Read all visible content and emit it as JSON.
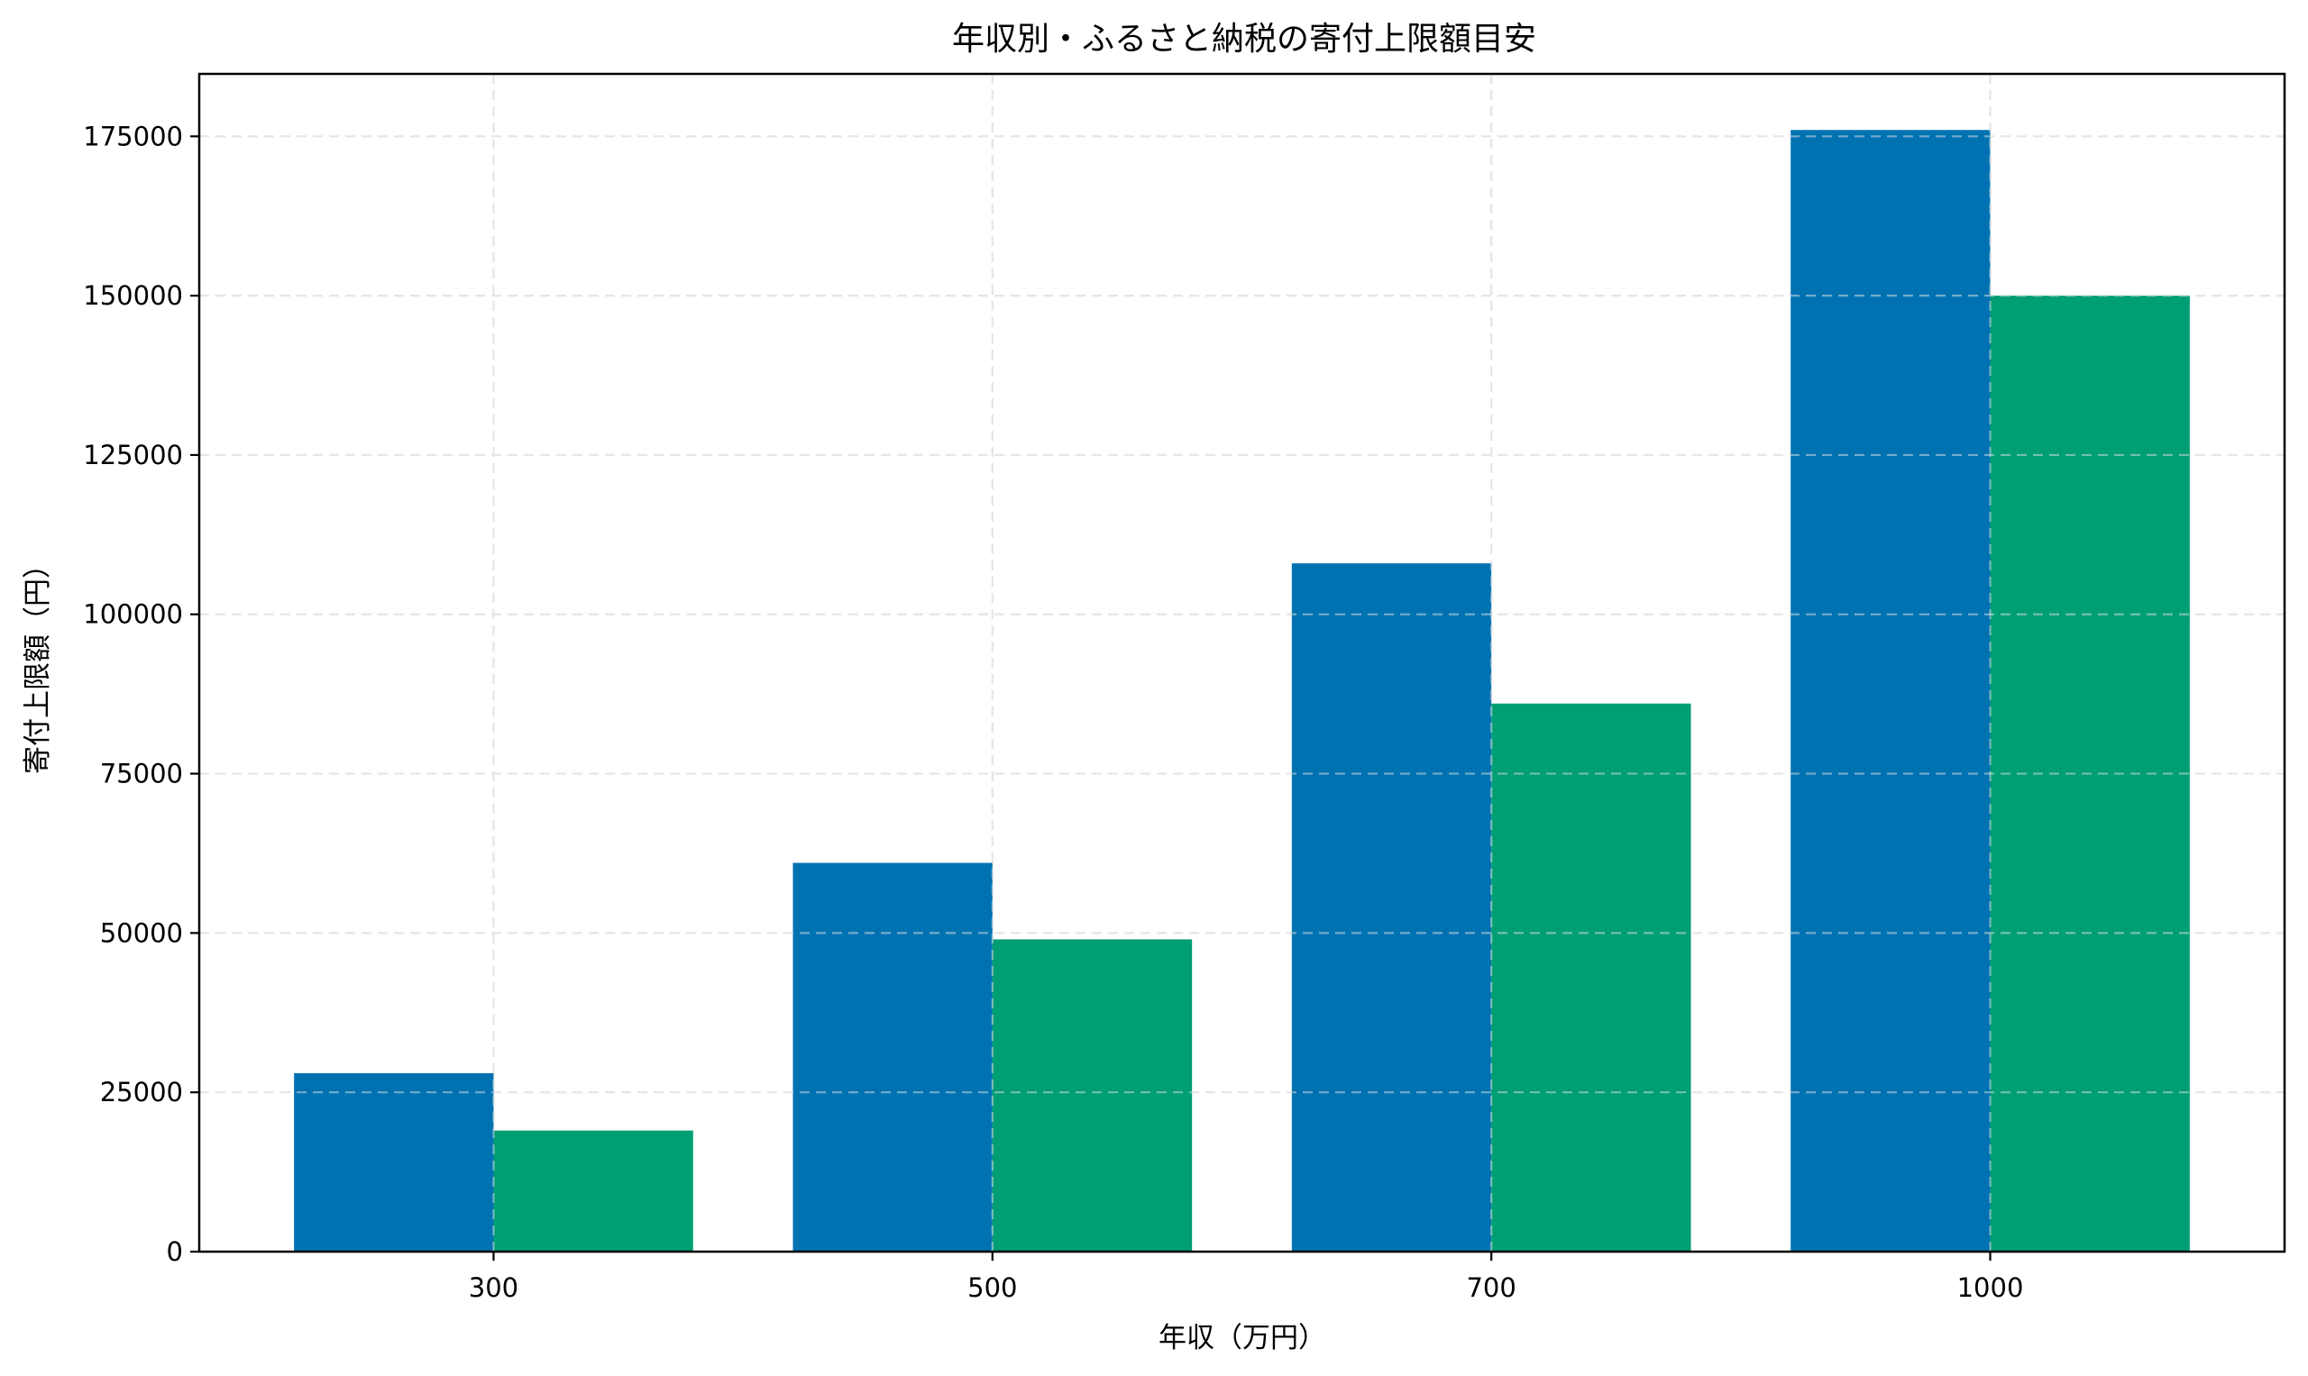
{
  "chart_data": {
    "type": "bar",
    "title": "年収別・ふるさと納税の寄付上限額目安",
    "xlabel": "年収（万円）",
    "ylabel": "寄付上限額（円）",
    "categories": [
      "300",
      "500",
      "700",
      "1000"
    ],
    "series": [
      {
        "name": "series-1",
        "color": "#0072B2",
        "values": [
          28000,
          61000,
          108000,
          176000
        ]
      },
      {
        "name": "series-2",
        "color": "#009E73",
        "values": [
          19000,
          49000,
          86000,
          150000
        ]
      }
    ],
    "yticks": [
      0,
      25000,
      50000,
      75000,
      100000,
      125000,
      150000,
      175000
    ],
    "ytick_labels": [
      "0",
      "25000",
      "50000",
      "75000",
      "100000",
      "125000",
      "150000",
      "175000"
    ],
    "ylim": [
      0,
      184800
    ],
    "xlim": [
      -0.59,
      3.59
    ],
    "bar_width": 0.4,
    "grid": {
      "on": true,
      "style": "dashed",
      "color": "#e6e6e6"
    },
    "legend": {
      "visible": false
    }
  },
  "colors": {
    "blue": "#0072B2",
    "green": "#009E73",
    "grid": "#e6e6e6",
    "axis": "#000000"
  }
}
